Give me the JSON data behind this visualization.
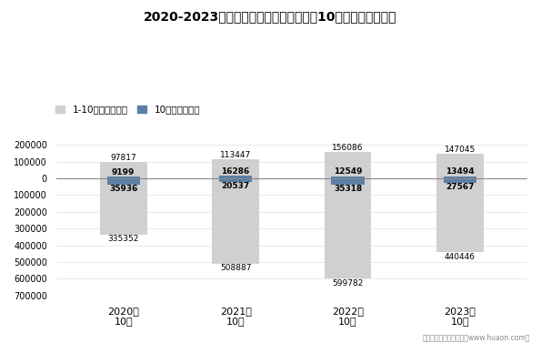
{
  "title": "2020-2023年甘肃省商品收发货人所在地10月进、出口额统计",
  "categories": [
    "2020年\n10月",
    "2021年\n10月",
    "2022年\n10月",
    "2023年\n10月"
  ],
  "legend_labels": [
    "1-10月（万美元）",
    "10月（万美元）"
  ],
  "export_gray": [
    97817,
    113447,
    156086,
    147045
  ],
  "export_blue": [
    9199,
    16286,
    12549,
    13494
  ],
  "import_gray": [
    335352,
    508887,
    599782,
    440446
  ],
  "import_blue": [
    35936,
    20537,
    35318,
    27567
  ],
  "color_gray": "#D0D0D0",
  "color_blue": "#5B7FA6",
  "bar_width": 0.42,
  "blue_bar_height": 35000,
  "ylim_min": -700000,
  "ylim_max": 200000,
  "yticks": [
    -700000,
    -600000,
    -500000,
    -400000,
    -300000,
    -200000,
    -100000,
    0,
    100000,
    200000
  ],
  "ytick_labels": [
    "700000",
    "600000",
    "500000",
    "400000",
    "300000",
    "200000",
    "100000",
    "0",
    "100000",
    "200000"
  ],
  "background_color": "#FFFFFF",
  "footer": "制图：华经产业研究院（www.huaon.com）"
}
